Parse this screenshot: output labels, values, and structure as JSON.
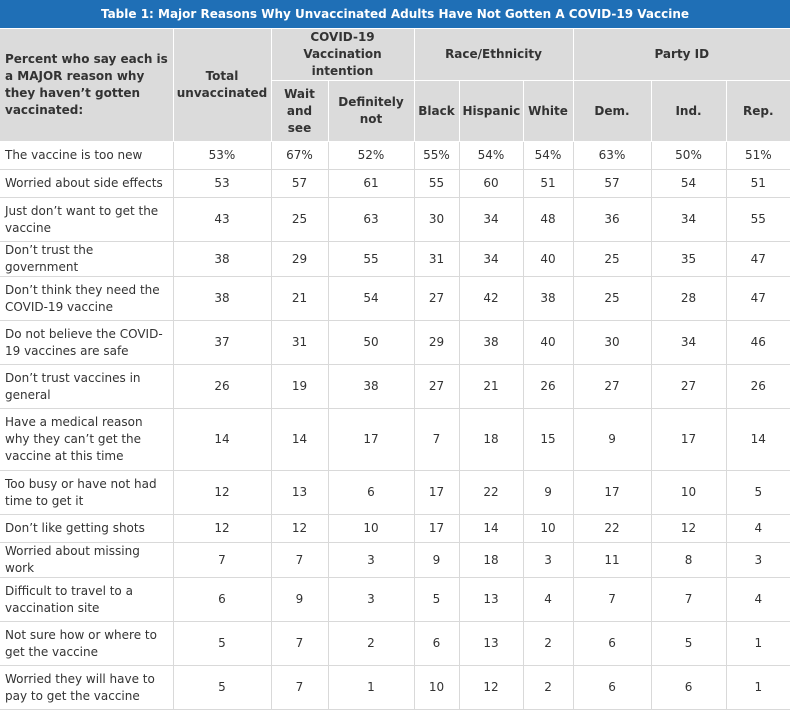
{
  "title": "Table 1: Major Reasons Why Unvaccinated Adults Have Not Gotten A COVID-19 Vaccine",
  "header": {
    "description": "Percent who say each is a MAJOR reason why they haven’t gotten vaccinated:",
    "total": "Total unvaccinated",
    "group_intention": "COVID-19 Vaccination intention",
    "group_race": "Race/Ethnicity",
    "group_party": "Party ID",
    "columns": [
      "Wait and see",
      "Definitely not",
      "Black",
      "Hispanic",
      "White",
      "Dem.",
      "Ind.",
      "Rep."
    ]
  },
  "rows": [
    {
      "label": "The vaccine is too new",
      "values": [
        "53%",
        "67%",
        "52%",
        "55%",
        "54%",
        "54%",
        "63%",
        "50%",
        "51%"
      ]
    },
    {
      "label": "Worried about side effects",
      "values": [
        "53",
        "57",
        "61",
        "55",
        "60",
        "51",
        "57",
        "54",
        "51"
      ]
    },
    {
      "label": "Just don’t want to get the vaccine",
      "values": [
        "43",
        "25",
        "63",
        "30",
        "34",
        "48",
        "36",
        "34",
        "55"
      ]
    },
    {
      "label": "Don’t trust the government",
      "values": [
        "38",
        "29",
        "55",
        "31",
        "34",
        "40",
        "25",
        "35",
        "47"
      ]
    },
    {
      "label": "Don’t think they need the COVID-19 vaccine",
      "values": [
        "38",
        "21",
        "54",
        "27",
        "42",
        "38",
        "25",
        "28",
        "47"
      ]
    },
    {
      "label": "Do not believe the COVID-19 vaccines are safe",
      "values": [
        "37",
        "31",
        "50",
        "29",
        "38",
        "40",
        "30",
        "34",
        "46"
      ]
    },
    {
      "label": "Don’t trust vaccines in general",
      "values": [
        "26",
        "19",
        "38",
        "27",
        "21",
        "26",
        "27",
        "27",
        "26"
      ]
    },
    {
      "label": "Have a medical reason why they can’t get the vaccine at this time",
      "values": [
        "14",
        "14",
        "17",
        "7",
        "18",
        "15",
        "9",
        "17",
        "14"
      ]
    },
    {
      "label": "Too busy or have not had time to get it",
      "values": [
        "12",
        "13",
        "6",
        "17",
        "22",
        "9",
        "17",
        "10",
        "5"
      ]
    },
    {
      "label": "Don’t like getting shots",
      "values": [
        "12",
        "12",
        "10",
        "17",
        "14",
        "10",
        "22",
        "12",
        "4"
      ]
    },
    {
      "label": "Worried about missing work",
      "values": [
        "7",
        "7",
        "3",
        "9",
        "18",
        "3",
        "11",
        "8",
        "3"
      ]
    },
    {
      "label": "Difficult to travel to a vaccination site",
      "values": [
        "6",
        "9",
        "3",
        "5",
        "13",
        "4",
        "7",
        "7",
        "4"
      ]
    },
    {
      "label": "Not sure how or where to get the vaccine",
      "values": [
        "5",
        "7",
        "2",
        "6",
        "13",
        "2",
        "6",
        "5",
        "1"
      ]
    },
    {
      "label": "Worried they will have to pay to get the vaccine",
      "values": [
        "5",
        "7",
        "1",
        "10",
        "12",
        "2",
        "6",
        "6",
        "1"
      ]
    }
  ],
  "colors": {
    "title_bg": "#1f6fb6",
    "header_bg": "#dbdbdb",
    "grid": "#d9d9d9"
  }
}
